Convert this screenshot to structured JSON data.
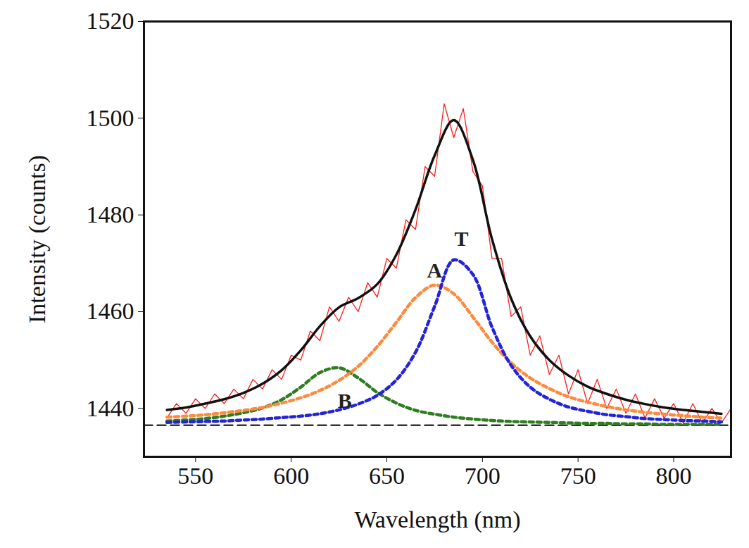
{
  "chart_data": {
    "type": "line",
    "xlabel": "Wavelength (nm)",
    "ylabel": "Intensity (counts)",
    "xlim": [
      523,
      830
    ],
    "xticks": [
      550,
      600,
      650,
      700,
      750,
      800
    ],
    "ylim": [
      1430,
      1520
    ],
    "yticks": [
      1440,
      1460,
      1480,
      1500,
      1520
    ],
    "grid": false,
    "series": [
      {
        "color": "#ff1a1a",
        "line_style": "solid",
        "x": [
          535,
          540,
          545,
          550,
          555,
          560,
          565,
          570,
          575,
          580,
          585,
          590,
          595,
          600,
          605,
          610,
          615,
          620,
          625,
          630,
          635,
          640,
          645,
          650,
          655,
          660,
          665,
          670,
          675,
          680,
          685,
          690,
          695,
          700,
          705,
          710,
          715,
          720,
          725,
          730,
          735,
          740,
          745,
          750,
          755,
          760,
          765,
          770,
          775,
          780,
          785,
          790,
          795,
          800,
          805,
          810,
          815,
          820,
          825,
          830
        ],
        "values": [
          1438,
          1441,
          1439,
          1442,
          1440,
          1443,
          1441,
          1444,
          1442,
          1446,
          1444,
          1448,
          1446,
          1451,
          1450,
          1456,
          1454,
          1461,
          1458,
          1463,
          1460,
          1466,
          1463,
          1471,
          1469,
          1479,
          1477,
          1490,
          1488,
          1503,
          1496,
          1502,
          1489,
          1486,
          1471,
          1471,
          1459,
          1461,
          1451,
          1455,
          1447,
          1451,
          1443,
          1448,
          1441,
          1446,
          1440,
          1444,
          1439,
          1443,
          1438,
          1442,
          1438,
          1441,
          1437,
          1441,
          1437,
          1440,
          1437,
          1440
        ]
      },
      {
        "color": "#333333",
        "line_style": "dashed",
        "x": [
          523,
          830
        ],
        "values": [
          1436.5,
          1436.5
        ]
      },
      {
        "name": "B",
        "color": "#2e7d1f",
        "line_style": "dashed",
        "x": [
          535,
          545,
          555,
          565,
          575,
          585,
          595,
          605,
          615,
          625,
          635,
          645,
          655,
          665,
          675,
          685,
          695,
          705,
          715,
          725,
          735,
          745,
          755,
          765,
          775,
          785,
          795,
          805,
          815,
          825
        ],
        "values": [
          1437.4,
          1437.6,
          1437.9,
          1438.4,
          1439.1,
          1440.1,
          1441.8,
          1444.4,
          1447.4,
          1448.4,
          1446.3,
          1443.3,
          1441.1,
          1439.6,
          1438.8,
          1438.2,
          1437.8,
          1437.5,
          1437.3,
          1437.2,
          1437.1,
          1437.0,
          1436.9,
          1436.9,
          1436.8,
          1436.8,
          1436.7,
          1436.7,
          1436.7,
          1436.7
        ]
      },
      {
        "name": "A",
        "color": "#ff8a3d",
        "line_style": "dashed",
        "x": [
          535,
          545,
          555,
          565,
          575,
          585,
          595,
          605,
          615,
          625,
          635,
          645,
          655,
          665,
          675,
          685,
          695,
          705,
          715,
          725,
          735,
          745,
          755,
          765,
          775,
          785,
          795,
          805,
          815,
          825
        ],
        "values": [
          1438.2,
          1438.4,
          1438.7,
          1439.1,
          1439.6,
          1440.2,
          1441.1,
          1442.2,
          1443.7,
          1445.8,
          1448.7,
          1452.8,
          1457.8,
          1462.9,
          1465.5,
          1463.7,
          1458.9,
          1453.7,
          1449.4,
          1446.3,
          1444.1,
          1442.4,
          1441.3,
          1440.4,
          1439.7,
          1439.2,
          1438.8,
          1438.5,
          1438.2,
          1438.0
        ]
      },
      {
        "name": "T",
        "color": "#2323d9",
        "line_style": "dashed",
        "x": [
          535,
          545,
          555,
          565,
          575,
          585,
          595,
          605,
          615,
          625,
          635,
          645,
          655,
          665,
          675,
          685,
          695,
          705,
          715,
          725,
          735,
          745,
          755,
          765,
          775,
          785,
          795,
          805,
          815,
          825
        ],
        "values": [
          1437.1,
          1437.2,
          1437.3,
          1437.4,
          1437.6,
          1437.8,
          1438.1,
          1438.4,
          1438.9,
          1439.7,
          1440.9,
          1442.7,
          1445.9,
          1451.6,
          1461.1,
          1470.7,
          1467.7,
          1456.8,
          1448.9,
          1444.4,
          1441.9,
          1440.3,
          1439.4,
          1438.7,
          1438.3,
          1437.9,
          1437.7,
          1437.5,
          1437.4,
          1437.2
        ]
      },
      {
        "color": "#111111",
        "line_style": "solid",
        "x": [
          535,
          545,
          555,
          565,
          575,
          585,
          595,
          605,
          615,
          625,
          635,
          645,
          655,
          665,
          675,
          685,
          695,
          705,
          715,
          725,
          735,
          745,
          755,
          765,
          775,
          785,
          795,
          805,
          815,
          825
        ],
        "values": [
          1439.7,
          1440.2,
          1441.0,
          1441.9,
          1443.2,
          1445.1,
          1447.9,
          1452.0,
          1457.0,
          1460.9,
          1462.8,
          1465.7,
          1471.8,
          1481.1,
          1492.3,
          1499.6,
          1491.4,
          1475.0,
          1462.7,
          1454.9,
          1450.0,
          1446.8,
          1444.5,
          1443.0,
          1441.8,
          1440.9,
          1440.2,
          1439.7,
          1439.3,
          1438.9
        ]
      }
    ],
    "annotations": [
      {
        "text": "A",
        "x": 675,
        "y": 1468.5
      },
      {
        "text": "T",
        "x": 689,
        "y": 1475
      },
      {
        "text": "B",
        "x": 628,
        "y": 1441.5
      }
    ]
  }
}
